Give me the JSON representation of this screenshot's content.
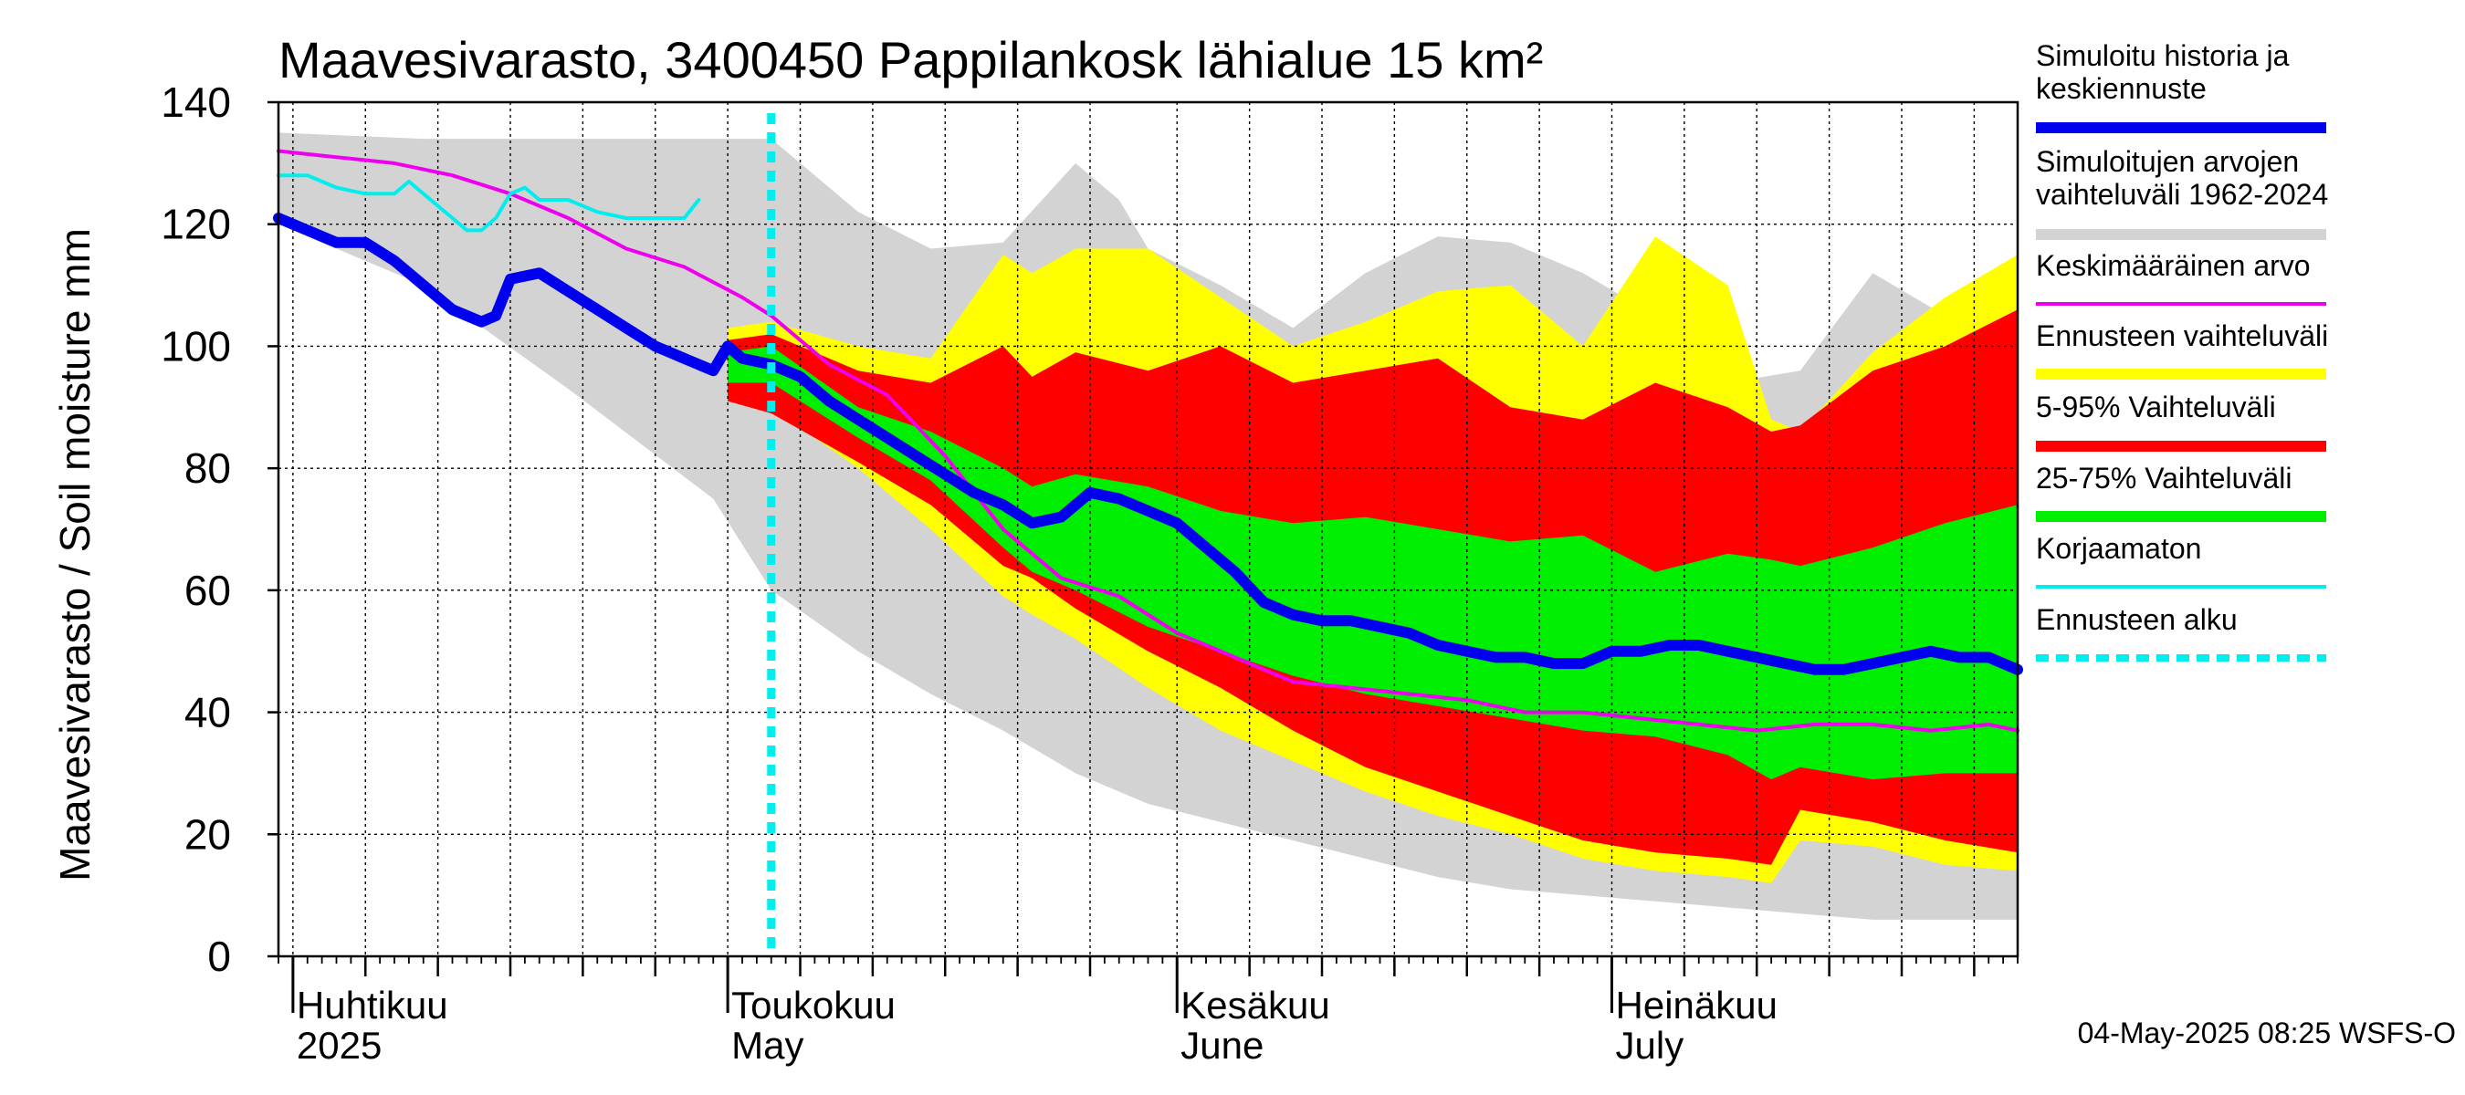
{
  "colors": {
    "history_band": "#d3d3d3",
    "forecast_range": "#ffff00",
    "p5_95": "#ff0000",
    "p25_75": "#00ee00",
    "simulated": "#0000ee",
    "mean": "#ee00ee",
    "uncorrected": "#00eeee",
    "forecast_start": "#00eeee",
    "grid": "#000000"
  },
  "chart_data": {
    "type": "area",
    "title": "Maavesivarasto, 3400450 Pappilankosk lähialue 15 km²",
    "ylabel": "Maavesivarasto / Soil moisture   mm",
    "ylim": [
      0,
      140
    ],
    "yticks": [
      0,
      20,
      40,
      60,
      80,
      100,
      120,
      140
    ],
    "xlim": [
      0,
      120
    ],
    "x_unit": "days since 2025-03-31",
    "forecast_start_day": 34,
    "month_ticks": [
      {
        "day": 1,
        "fi": "Huhtikuu",
        "en": "2025"
      },
      {
        "day": 31,
        "fi": "Toukokuu",
        "en": "May"
      },
      {
        "day": 62,
        "fi": "Kesäkuu",
        "en": "June"
      },
      {
        "day": 92,
        "fi": "Heinäkuu",
        "en": "July"
      }
    ],
    "week_grid_days": [
      6,
      11,
      16,
      21,
      26,
      36,
      41,
      46,
      51,
      56,
      67,
      72,
      77,
      82,
      87,
      97,
      102,
      107,
      112,
      117
    ],
    "series": [
      {
        "name": "Simuloitujen arvojen vaihteluväli 1962-2024",
        "kind": "band",
        "x": [
          0,
          10,
          20,
          30,
          34,
          40,
          45,
          50,
          55,
          58,
          60,
          65,
          70,
          75,
          80,
          85,
          90,
          95,
          100,
          105,
          110,
          115,
          120
        ],
        "upper": [
          135,
          134,
          134,
          134,
          134,
          122,
          116,
          117,
          130,
          124,
          116,
          110,
          103,
          112,
          118,
          117,
          112,
          105,
          94,
          96,
          112,
          105,
          112
        ],
        "lower": [
          120,
          110,
          93,
          75,
          60,
          50,
          43,
          37,
          30,
          27,
          25,
          22,
          19,
          16,
          13,
          11,
          10,
          9,
          8,
          7,
          6,
          6,
          6
        ]
      },
      {
        "name": "Ennusteen vaihteluväli",
        "kind": "band",
        "x": [
          31,
          34,
          40,
          45,
          50,
          52,
          55,
          60,
          65,
          70,
          75,
          80,
          85,
          90,
          95,
          100,
          103,
          105,
          110,
          115,
          120
        ],
        "upper": [
          103,
          104,
          100,
          98,
          115,
          112,
          116,
          116,
          108,
          100,
          104,
          109,
          110,
          100,
          118,
          110,
          88,
          86,
          99,
          108,
          115
        ],
        "lower": [
          91,
          90,
          80,
          70,
          59,
          56,
          52,
          44,
          37,
          32,
          27,
          23,
          20,
          16,
          14,
          13,
          12,
          19,
          18,
          15,
          14
        ]
      },
      {
        "name": "5-95% Vaihteluväli",
        "kind": "band",
        "x": [
          31,
          34,
          40,
          45,
          50,
          52,
          55,
          60,
          65,
          70,
          75,
          80,
          85,
          90,
          95,
          100,
          103,
          105,
          110,
          115,
          120
        ],
        "upper": [
          101,
          102,
          96,
          94,
          100,
          95,
          99,
          96,
          100,
          94,
          96,
          98,
          90,
          88,
          94,
          90,
          86,
          87,
          96,
          100,
          106
        ],
        "lower": [
          91,
          89,
          81,
          74,
          64,
          62,
          57,
          50,
          44,
          37,
          31,
          27,
          23,
          19,
          17,
          16,
          15,
          24,
          22,
          19,
          17
        ]
      },
      {
        "name": "25-75% Vaihteluväli",
        "kind": "band",
        "x": [
          31,
          34,
          40,
          45,
          50,
          52,
          55,
          60,
          65,
          70,
          75,
          80,
          85,
          90,
          95,
          100,
          103,
          105,
          110,
          115,
          120
        ],
        "upper": [
          99,
          100,
          90,
          86,
          80,
          77,
          79,
          77,
          73,
          71,
          72,
          70,
          68,
          69,
          63,
          66,
          65,
          64,
          67,
          71,
          74
        ],
        "lower": [
          94,
          94,
          85,
          78,
          67,
          63,
          60,
          54,
          50,
          46,
          43,
          41,
          39,
          37,
          36,
          33,
          29,
          31,
          29,
          30,
          30
        ]
      },
      {
        "name": "Keskimääräinen arvo",
        "kind": "line",
        "x": [
          0,
          4,
          8,
          12,
          16,
          20,
          24,
          28,
          32,
          34,
          38,
          42,
          46,
          50,
          54,
          58,
          62,
          66,
          70,
          74,
          78,
          82,
          86,
          90,
          94,
          98,
          102,
          106,
          110,
          114,
          118,
          120
        ],
        "y": [
          132,
          131,
          130,
          128,
          125,
          121,
          116,
          113,
          108,
          105,
          97,
          92,
          82,
          70,
          62,
          59,
          53,
          49,
          45,
          44,
          43,
          42,
          40,
          40,
          39,
          38,
          37,
          38,
          38,
          37,
          38,
          37
        ]
      },
      {
        "name": "Simuloitu historia ja keskiennuste",
        "kind": "line",
        "x": [
          0,
          2,
          4,
          6,
          8,
          10,
          12,
          14,
          15,
          16,
          18,
          20,
          22,
          24,
          26,
          28,
          30,
          31,
          32,
          34,
          36,
          38,
          40,
          42,
          44,
          46,
          48,
          50,
          52,
          54,
          56,
          58,
          60,
          62,
          64,
          66,
          68,
          70,
          72,
          74,
          76,
          78,
          80,
          82,
          84,
          86,
          88,
          90,
          92,
          94,
          96,
          98,
          100,
          102,
          104,
          106,
          108,
          110,
          112,
          114,
          116,
          118,
          120
        ],
        "y": [
          121,
          119,
          117,
          117,
          114,
          110,
          106,
          104,
          105,
          111,
          112,
          109,
          106,
          103,
          100,
          98,
          96,
          100,
          98,
          97,
          95,
          91,
          88,
          85,
          82,
          79,
          76,
          74,
          71,
          72,
          76,
          75,
          73,
          71,
          67,
          63,
          58,
          56,
          55,
          55,
          54,
          53,
          51,
          50,
          49,
          49,
          48,
          48,
          50,
          50,
          51,
          51,
          50,
          49,
          48,
          47,
          47,
          48,
          49,
          50,
          49,
          49,
          47
        ]
      },
      {
        "name": "Korjaamaton",
        "kind": "line",
        "x": [
          0,
          2,
          4,
          6,
          8,
          9,
          10,
          12,
          13,
          14,
          15,
          16,
          17,
          18,
          20,
          22,
          24,
          26,
          28,
          29
        ],
        "y": [
          128,
          128,
          126,
          125,
          125,
          127,
          125,
          121,
          119,
          119,
          121,
          125,
          126,
          124,
          124,
          122,
          121,
          121,
          121,
          124
        ]
      }
    ]
  },
  "legend": {
    "items": [
      {
        "line1": "Simuloitu historia ja",
        "line2": "keskiennuste",
        "color": "#0000ee"
      },
      {
        "line1": "Simuloitujen arvojen",
        "line2": "vaihteluväli 1962-2024",
        "color": "#d3d3d3"
      },
      {
        "line1": "Keskimääräinen arvo",
        "line2": "",
        "color": "#ee00ee"
      },
      {
        "line1": "Ennusteen vaihteluväli",
        "line2": "",
        "color": "#ffff00"
      },
      {
        "line1": "5-95% Vaihteluväli",
        "line2": "",
        "color": "#ff0000"
      },
      {
        "line1": "25-75% Vaihteluväli",
        "line2": "",
        "color": "#00ee00"
      },
      {
        "line1": "Korjaamaton",
        "line2": "",
        "color": "#00eeee"
      },
      {
        "line1": "Ennusteen alku",
        "line2": "",
        "color": "#00eeee"
      }
    ]
  },
  "footer": "04-May-2025 08:25 WSFS-O"
}
